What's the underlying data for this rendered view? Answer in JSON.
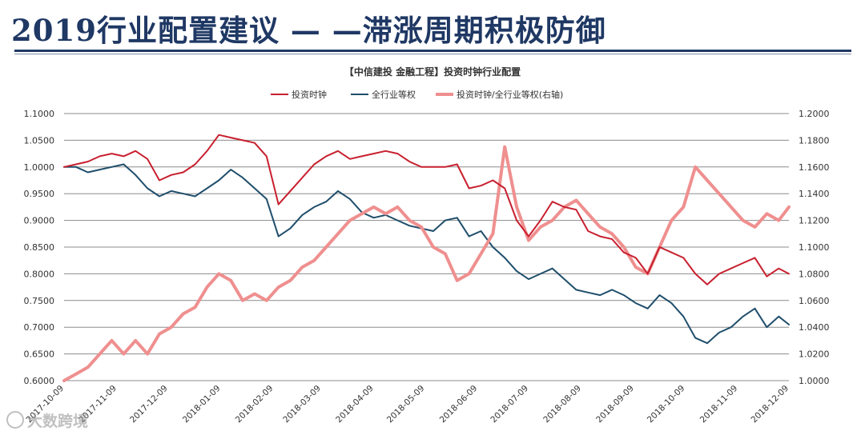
{
  "page": {
    "title": "2019行业配置建议 — —滞涨周期积极防御",
    "watermark": "大数跨境"
  },
  "colors": {
    "title": "#1f3864",
    "series_clock": "#c8202f",
    "series_equal": "#1f4e6b",
    "series_ratio": "#ef8f8f",
    "grid": "#8c8c8c"
  },
  "chart_data": {
    "type": "line",
    "title": "【中信建投 金融工程】投资时钟行业配置",
    "x_ticks": [
      "2017-10-09",
      "2017-11-09",
      "2017-12-09",
      "2018-01-09",
      "2018-02-09",
      "2018-03-09",
      "2018-04-09",
      "2018-05-09",
      "2018-06-09",
      "2018-07-09",
      "2018-08-09",
      "2018-09-09",
      "2018-10-09",
      "2018-11-09",
      "2018-12-09"
    ],
    "x_range": [
      "2017-10-09",
      "2018-12-09"
    ],
    "y_left": {
      "range": [
        0.6,
        1.1
      ],
      "ticks": [
        "0.6000",
        "0.6500",
        "0.7000",
        "0.7500",
        "0.8000",
        "0.8500",
        "0.9000",
        "0.9500",
        "1.0000",
        "1.0500",
        "1.1000"
      ]
    },
    "y_right": {
      "range": [
        1.0,
        1.2
      ],
      "ticks": [
        "1.0000",
        "1.0200",
        "1.0400",
        "1.0600",
        "1.0800",
        "1.1000",
        "1.1200",
        "1.1400",
        "1.1600",
        "1.1800",
        "1.2000"
      ]
    },
    "grid": "horizontal",
    "legend_position": "top",
    "series": [
      {
        "name": "投资时钟",
        "axis": "left",
        "x": [
          "2017-10-09",
          "2017-10-16",
          "2017-10-23",
          "2017-10-30",
          "2017-11-06",
          "2017-11-13",
          "2017-11-20",
          "2017-11-27",
          "2017-12-04",
          "2017-12-11",
          "2017-12-18",
          "2017-12-25",
          "2018-01-01",
          "2018-01-08",
          "2018-01-15",
          "2018-01-22",
          "2018-01-29",
          "2018-02-05",
          "2018-02-12",
          "2018-02-19",
          "2018-02-26",
          "2018-03-05",
          "2018-03-12",
          "2018-03-19",
          "2018-03-26",
          "2018-04-02",
          "2018-04-09",
          "2018-04-16",
          "2018-04-23",
          "2018-04-30",
          "2018-05-07",
          "2018-05-14",
          "2018-05-21",
          "2018-05-28",
          "2018-06-04",
          "2018-06-11",
          "2018-06-18",
          "2018-06-25",
          "2018-07-02",
          "2018-07-09",
          "2018-07-16",
          "2018-07-23",
          "2018-07-30",
          "2018-08-06",
          "2018-08-13",
          "2018-08-20",
          "2018-08-27",
          "2018-09-03",
          "2018-09-10",
          "2018-09-17",
          "2018-09-24",
          "2018-10-01",
          "2018-10-08",
          "2018-10-15",
          "2018-10-22",
          "2018-10-29",
          "2018-11-05",
          "2018-11-12",
          "2018-11-19",
          "2018-11-26",
          "2018-12-03",
          "2018-12-09"
        ],
        "values": [
          1.0,
          1.005,
          1.01,
          1.02,
          1.025,
          1.02,
          1.03,
          1.015,
          0.975,
          0.985,
          0.99,
          1.005,
          1.03,
          1.06,
          1.055,
          1.05,
          1.045,
          1.02,
          0.93,
          0.955,
          0.98,
          1.005,
          1.02,
          1.03,
          1.015,
          1.02,
          1.025,
          1.03,
          1.025,
          1.01,
          1.0,
          1.0,
          1.0,
          1.005,
          0.96,
          0.965,
          0.975,
          0.96,
          0.9,
          0.87,
          0.9,
          0.935,
          0.925,
          0.92,
          0.88,
          0.87,
          0.865,
          0.84,
          0.83,
          0.8,
          0.85,
          0.84,
          0.83,
          0.8,
          0.78,
          0.8,
          0.81,
          0.82,
          0.83,
          0.795,
          0.81,
          0.8
        ]
      },
      {
        "name": "全行业等权",
        "axis": "left",
        "x": [
          "2017-10-09",
          "2017-10-16",
          "2017-10-23",
          "2017-10-30",
          "2017-11-06",
          "2017-11-13",
          "2017-11-20",
          "2017-11-27",
          "2017-12-04",
          "2017-12-11",
          "2017-12-18",
          "2017-12-25",
          "2018-01-01",
          "2018-01-08",
          "2018-01-15",
          "2018-01-22",
          "2018-01-29",
          "2018-02-05",
          "2018-02-12",
          "2018-02-19",
          "2018-02-26",
          "2018-03-05",
          "2018-03-12",
          "2018-03-19",
          "2018-03-26",
          "2018-04-02",
          "2018-04-09",
          "2018-04-16",
          "2018-04-23",
          "2018-04-30",
          "2018-05-07",
          "2018-05-14",
          "2018-05-21",
          "2018-05-28",
          "2018-06-04",
          "2018-06-11",
          "2018-06-18",
          "2018-06-25",
          "2018-07-02",
          "2018-07-09",
          "2018-07-16",
          "2018-07-23",
          "2018-07-30",
          "2018-08-06",
          "2018-08-13",
          "2018-08-20",
          "2018-08-27",
          "2018-09-03",
          "2018-09-10",
          "2018-09-17",
          "2018-09-24",
          "2018-10-01",
          "2018-10-08",
          "2018-10-15",
          "2018-10-22",
          "2018-10-29",
          "2018-11-05",
          "2018-11-12",
          "2018-11-19",
          "2018-11-26",
          "2018-12-03",
          "2018-12-09"
        ],
        "values": [
          1.0,
          1.0,
          0.99,
          0.995,
          1.0,
          1.005,
          0.985,
          0.96,
          0.945,
          0.955,
          0.95,
          0.945,
          0.96,
          0.975,
          0.995,
          0.98,
          0.96,
          0.94,
          0.87,
          0.885,
          0.91,
          0.925,
          0.935,
          0.955,
          0.94,
          0.915,
          0.905,
          0.91,
          0.9,
          0.89,
          0.885,
          0.88,
          0.9,
          0.905,
          0.87,
          0.88,
          0.85,
          0.83,
          0.805,
          0.79,
          0.8,
          0.81,
          0.79,
          0.77,
          0.765,
          0.76,
          0.77,
          0.76,
          0.745,
          0.735,
          0.76,
          0.745,
          0.72,
          0.68,
          0.67,
          0.69,
          0.7,
          0.72,
          0.735,
          0.7,
          0.72,
          0.705
        ]
      },
      {
        "name": "投资时钟/全行业等权(右轴)",
        "axis": "right",
        "x": [
          "2017-10-09",
          "2017-10-16",
          "2017-10-23",
          "2017-10-30",
          "2017-11-06",
          "2017-11-13",
          "2017-11-20",
          "2017-11-27",
          "2017-12-04",
          "2017-12-11",
          "2017-12-18",
          "2017-12-25",
          "2018-01-01",
          "2018-01-08",
          "2018-01-15",
          "2018-01-22",
          "2018-01-29",
          "2018-02-05",
          "2018-02-12",
          "2018-02-19",
          "2018-02-26",
          "2018-03-05",
          "2018-03-12",
          "2018-03-19",
          "2018-03-26",
          "2018-04-02",
          "2018-04-09",
          "2018-04-16",
          "2018-04-23",
          "2018-04-30",
          "2018-05-07",
          "2018-05-14",
          "2018-05-21",
          "2018-05-28",
          "2018-06-04",
          "2018-06-11",
          "2018-06-18",
          "2018-06-25",
          "2018-07-02",
          "2018-07-09",
          "2018-07-16",
          "2018-07-23",
          "2018-07-30",
          "2018-08-06",
          "2018-08-13",
          "2018-08-20",
          "2018-08-27",
          "2018-09-03",
          "2018-09-10",
          "2018-09-17",
          "2018-09-24",
          "2018-10-01",
          "2018-10-08",
          "2018-10-15",
          "2018-10-22",
          "2018-10-29",
          "2018-11-05",
          "2018-11-12",
          "2018-11-19",
          "2018-11-26",
          "2018-12-03",
          "2018-12-09"
        ],
        "values": [
          1.0,
          1.005,
          1.01,
          1.02,
          1.03,
          1.02,
          1.03,
          1.02,
          1.035,
          1.04,
          1.05,
          1.055,
          1.07,
          1.08,
          1.075,
          1.06,
          1.065,
          1.06,
          1.07,
          1.075,
          1.085,
          1.09,
          1.1,
          1.11,
          1.12,
          1.125,
          1.13,
          1.125,
          1.13,
          1.12,
          1.115,
          1.1,
          1.095,
          1.075,
          1.08,
          1.095,
          1.11,
          1.175,
          1.13,
          1.105,
          1.115,
          1.12,
          1.13,
          1.135,
          1.125,
          1.115,
          1.11,
          1.1,
          1.085,
          1.08,
          1.1,
          1.12,
          1.13,
          1.16,
          1.15,
          1.14,
          1.13,
          1.12,
          1.115,
          1.125,
          1.12,
          1.13
        ]
      }
    ]
  }
}
